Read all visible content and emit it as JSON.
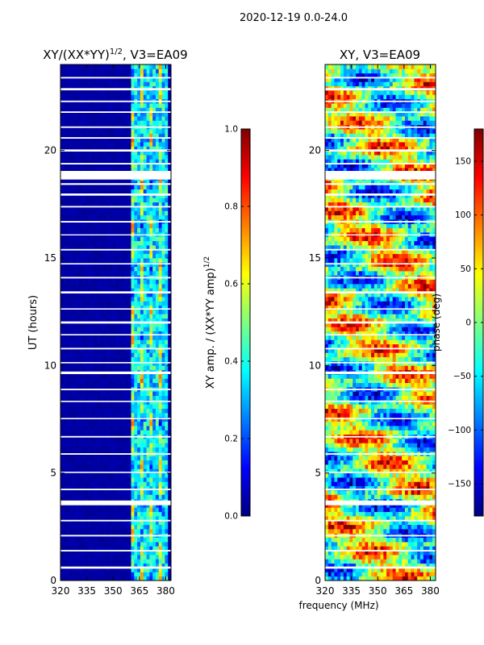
{
  "suptitle": "2020-12-19 0.0-24.0",
  "xlabel_shared": "frequency (MHz)",
  "colors": {
    "no_data": "#ffffff",
    "frame": "#000000",
    "colormap": "jet",
    "jet_stops": [
      "#00007f",
      "#0000ff",
      "#007fff",
      "#00ffff",
      "#7fff7f",
      "#ffff00",
      "#ff7f00",
      "#ff0000",
      "#7f0000"
    ]
  },
  "chart_data": [
    {
      "type": "heatmap",
      "title_main": "XY/(XX*YY)",
      "title_sup": "1/2",
      "title_tail": ", V3=EA09",
      "xlabel": "",
      "ylabel": "UT (hours)",
      "xlim": [
        320,
        383
      ],
      "ylim": [
        0,
        24
      ],
      "xticks": [
        320,
        335,
        350,
        365,
        380
      ],
      "yticks": [
        0,
        5,
        10,
        15,
        20
      ],
      "colorbar": {
        "label_main": "XY amp. / (XX*YY amp)",
        "label_sup": "1/2",
        "range": [
          0.0,
          1.0
        ],
        "ticks": [
          "0.0",
          "0.2",
          "0.4",
          "0.6",
          "0.8",
          "1.0"
        ],
        "tick_values": [
          0.0,
          0.2,
          0.4,
          0.6,
          0.8,
          1.0
        ]
      },
      "background_value": 0.0,
      "active_band_mhz": [
        360,
        382
      ],
      "typical_active_value_range": [
        0.2,
        0.8
      ]
    },
    {
      "type": "heatmap",
      "title": "XY, V3=EA09",
      "xlabel": "frequency (MHz)",
      "ylabel": "",
      "xlim": [
        320,
        383
      ],
      "ylim": [
        0,
        24
      ],
      "xticks": [
        320,
        335,
        350,
        365,
        380
      ],
      "yticks": [
        0,
        5,
        10,
        15,
        20
      ],
      "colorbar": {
        "label": "phase (deg)",
        "range": [
          -180,
          180
        ],
        "ticks": [
          "−150",
          "−100",
          "−50",
          "0",
          "50",
          "100",
          "150"
        ],
        "tick_values": [
          -150,
          -100,
          -50,
          0,
          50,
          100,
          150
        ]
      },
      "value_range_deg": [
        -180,
        180
      ]
    }
  ],
  "flagged_gaps_ut_hours": [
    [
      0.55,
      0.65
    ],
    [
      1.35,
      1.42
    ],
    [
      2.05,
      2.12
    ],
    [
      2.75,
      2.82
    ],
    [
      3.5,
      3.72
    ],
    [
      4.2,
      4.27
    ],
    [
      5.0,
      5.06
    ],
    [
      5.85,
      5.92
    ],
    [
      6.65,
      6.72
    ],
    [
      7.5,
      7.56
    ],
    [
      8.3,
      8.36
    ],
    [
      8.85,
      8.92
    ],
    [
      9.6,
      9.72
    ],
    [
      10.1,
      10.16
    ],
    [
      10.75,
      10.82
    ],
    [
      11.4,
      11.46
    ],
    [
      11.95,
      12.05
    ],
    [
      12.6,
      12.66
    ],
    [
      13.35,
      13.45
    ],
    [
      14.05,
      14.12
    ],
    [
      14.7,
      14.76
    ],
    [
      15.35,
      15.42
    ],
    [
      16.05,
      16.1
    ],
    [
      16.65,
      16.72
    ],
    [
      17.35,
      17.42
    ],
    [
      17.9,
      18.0
    ],
    [
      18.4,
      18.48
    ],
    [
      18.65,
      19.05
    ],
    [
      19.35,
      19.42
    ],
    [
      19.95,
      20.05
    ],
    [
      20.55,
      20.62
    ],
    [
      21.05,
      21.12
    ],
    [
      21.75,
      21.82
    ],
    [
      22.25,
      22.32
    ],
    [
      22.8,
      22.9
    ],
    [
      23.35,
      23.42
    ]
  ]
}
